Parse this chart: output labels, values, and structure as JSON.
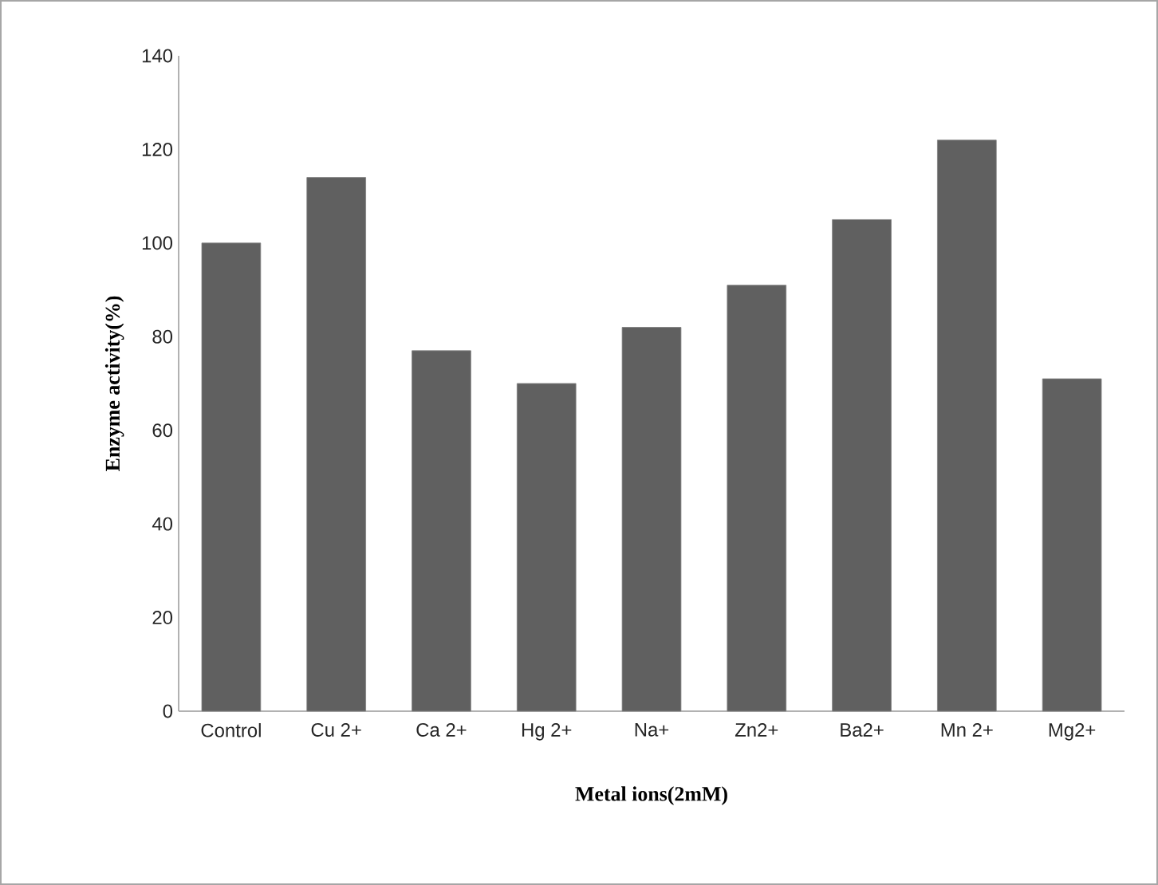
{
  "chart_data": {
    "type": "bar",
    "xlabel": "Metal ions(2mM)",
    "ylabel": "Enzyme activity(%)",
    "categories": [
      "Control",
      "Cu 2+",
      "Ca 2+",
      "Hg 2+",
      "Na+",
      "Zn2+",
      "Ba2+",
      "Mn 2+",
      "Mg2+"
    ],
    "values": [
      100,
      114,
      77,
      70,
      82,
      91,
      105,
      122,
      71
    ],
    "color": "#606060",
    "ylim": [
      0,
      140
    ],
    "yticks": [
      0,
      20,
      40,
      60,
      80,
      100,
      120,
      140
    ]
  }
}
